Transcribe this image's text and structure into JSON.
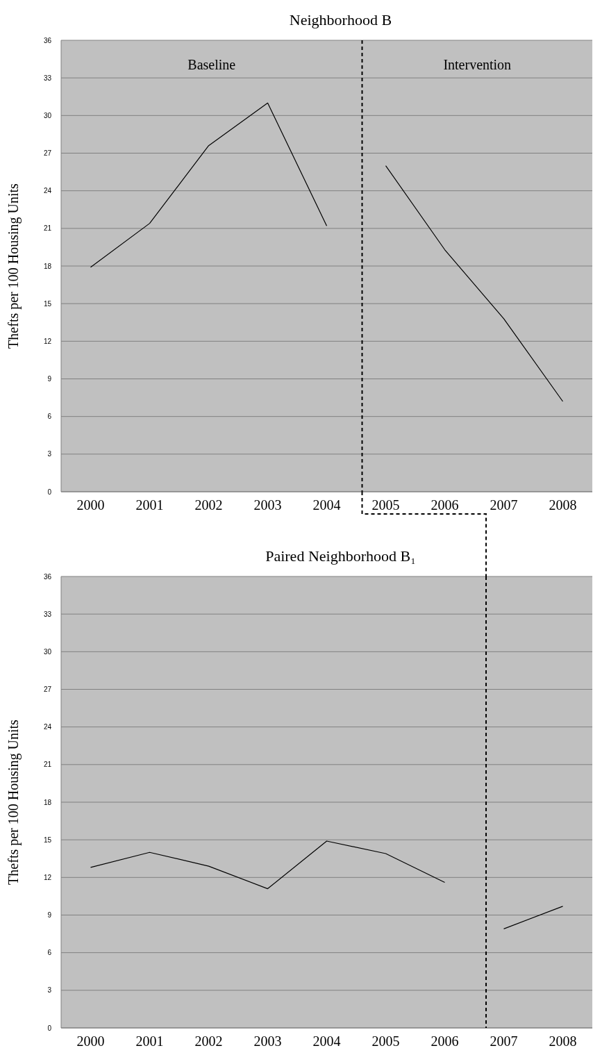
{
  "chart_data": [
    {
      "type": "line",
      "title": "Neighborhood B",
      "ylabel": "Thefts per 100 Housing Units",
      "x": [
        2000,
        2001,
        2002,
        2003,
        2004,
        2005,
        2006,
        2007,
        2008
      ],
      "xlim": [
        1999.5,
        2008.5
      ],
      "xticks": [
        2000,
        2001,
        2002,
        2003,
        2004,
        2005,
        2006,
        2007,
        2008
      ],
      "ylim": [
        0,
        36
      ],
      "yticks": [
        0,
        3,
        6,
        9,
        12,
        15,
        18,
        21,
        24,
        27,
        30,
        33,
        36
      ],
      "grid": "y",
      "series": [
        {
          "color": "#000000",
          "values": [
            17.9,
            21.4,
            27.6,
            31.0,
            21.2,
            null,
            null,
            null,
            null
          ]
        },
        {
          "color": "#000000",
          "values": [
            null,
            null,
            null,
            null,
            null,
            26.0,
            19.3,
            13.8,
            7.2
          ]
        }
      ],
      "ref_lines": [
        {
          "axis": "x",
          "value": 2004.6,
          "line_style": "dashed",
          "color": "#000000"
        }
      ],
      "annotations": [
        "Baseline",
        "Intervention"
      ]
    },
    {
      "type": "line",
      "title": "Paired Neighborhood B₁",
      "ylabel": "Thefts per 100 Housing Units",
      "x": [
        2000,
        2001,
        2002,
        2003,
        2004,
        2005,
        2006,
        2007,
        2008
      ],
      "xlim": [
        1999.5,
        2008.5
      ],
      "xticks": [
        2000,
        2001,
        2002,
        2003,
        2004,
        2005,
        2006,
        2007,
        2008
      ],
      "ylim": [
        0,
        36
      ],
      "yticks": [
        0,
        3,
        6,
        9,
        12,
        15,
        18,
        21,
        24,
        27,
        30,
        33,
        36
      ],
      "grid": "y",
      "series": [
        {
          "color": "#000000",
          "values": [
            12.8,
            14.0,
            12.9,
            11.1,
            14.9,
            13.9,
            11.6,
            null,
            null
          ]
        },
        {
          "color": "#000000",
          "values": [
            null,
            null,
            null,
            null,
            null,
            null,
            null,
            7.9,
            9.7
          ]
        }
      ],
      "ref_lines": [
        {
          "axis": "x",
          "value": 2006.7,
          "line_style": "dashed",
          "color": "#000000"
        }
      ]
    }
  ]
}
